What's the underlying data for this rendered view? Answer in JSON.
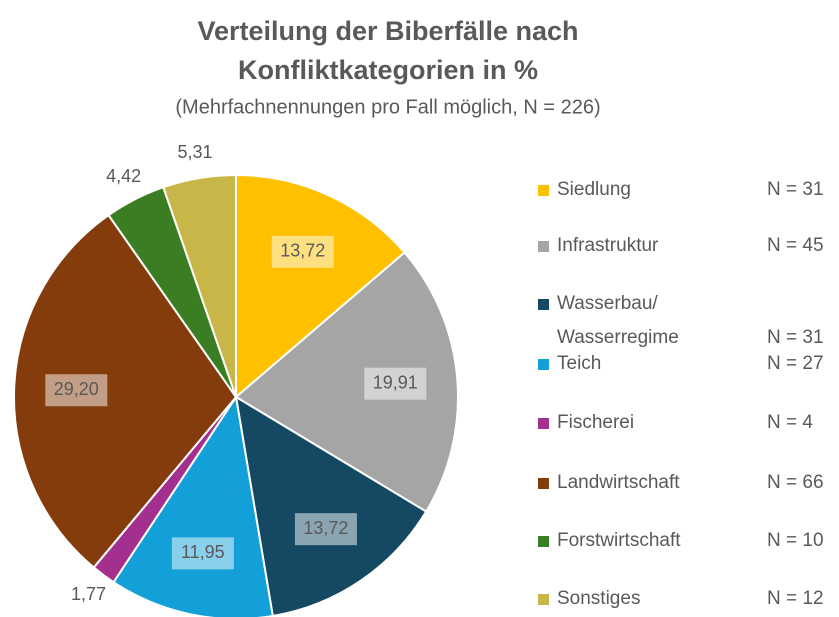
{
  "chart_data": {
    "type": "pie",
    "title": [
      "Verteilung der Biberfälle nach",
      "Konfliktkategorien in %"
    ],
    "subtitle": "(Mehrfachnennungen pro Fall möglich, N = 226)",
    "categories": [
      "Siedlung",
      "Infrastruktur",
      "Wasserbau/\nWasserregime",
      "Teich",
      "Fischerei",
      "Landwirtschaft",
      "Forstwirtschaft",
      "Sonstiges"
    ],
    "values": [
      13.72,
      19.91,
      13.72,
      11.95,
      1.77,
      29.2,
      4.42,
      5.31
    ],
    "value_labels": [
      "13,72",
      "19,91",
      "13,72",
      "11,95",
      "1,77",
      "29,20",
      "4,42",
      "5,31"
    ],
    "legend_notes": [
      "N = 31",
      "N = 45",
      "N = 31",
      "N = 27",
      "N = 4",
      "N = 66",
      "N = 10",
      "N = 12"
    ],
    "colors": [
      "#ffc000",
      "#a5a5a5",
      "#154862",
      "#13a0d8",
      "#a3308f",
      "#843c0c",
      "#3b7d23",
      "#c8b748"
    ],
    "legend": "right"
  }
}
